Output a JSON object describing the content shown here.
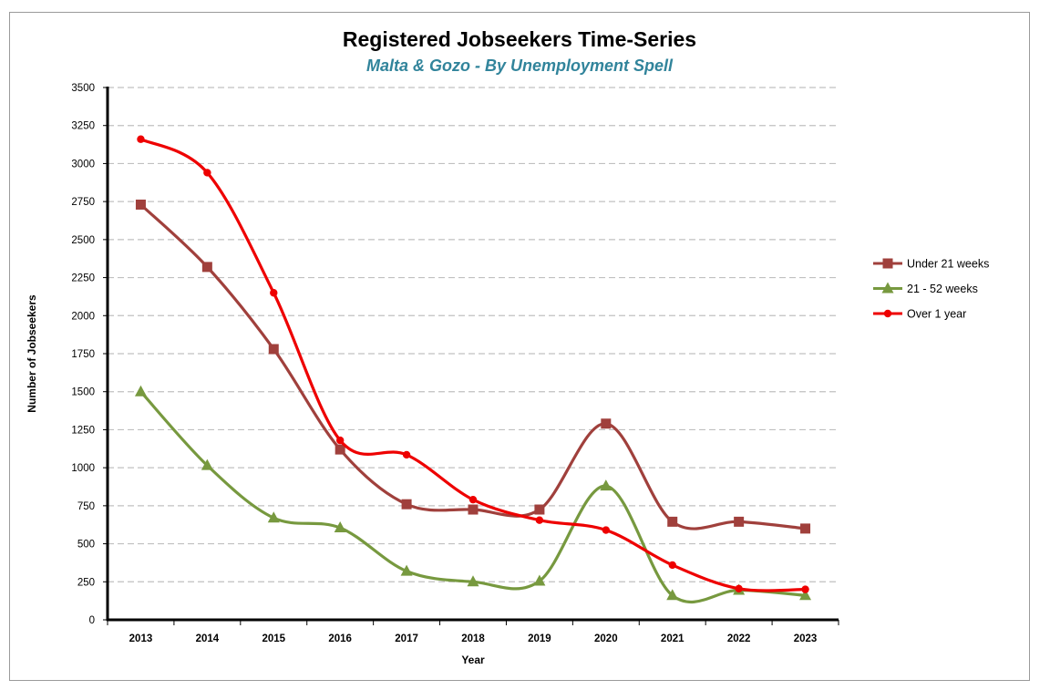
{
  "chart_data": {
    "type": "line",
    "title": "Registered Jobseekers Time-Series",
    "subtitle": "Malta & Gozo - By Unemployment Spell",
    "xlabel": "Year",
    "ylabel": "Number of Jobseekers",
    "ylim": [
      0,
      3500
    ],
    "yticks": [
      0,
      250,
      500,
      750,
      1000,
      1250,
      1500,
      1750,
      2000,
      2250,
      2500,
      2750,
      3000,
      3250,
      3500
    ],
    "categories": [
      "2013",
      "2014",
      "2015",
      "2016",
      "2017",
      "2018",
      "2019",
      "2020",
      "2021",
      "2022",
      "2023"
    ],
    "grid": "horizontal dashed",
    "legend_position": "right",
    "series": [
      {
        "name": "Under 21 weeks",
        "color": "#a0403c",
        "marker": "square",
        "values": [
          2730,
          2320,
          1780,
          1120,
          760,
          725,
          725,
          1290,
          645,
          645,
          600
        ]
      },
      {
        "name": "21 - 52 weeks",
        "color": "#77993f",
        "marker": "triangle",
        "values": [
          1500,
          1015,
          670,
          605,
          320,
          250,
          255,
          880,
          160,
          195,
          160
        ]
      },
      {
        "name": "Over 1 year",
        "color": "#ee0000",
        "marker": "circle",
        "values": [
          3160,
          2940,
          2150,
          1180,
          1085,
          790,
          655,
          590,
          360,
          205,
          200
        ]
      }
    ]
  }
}
